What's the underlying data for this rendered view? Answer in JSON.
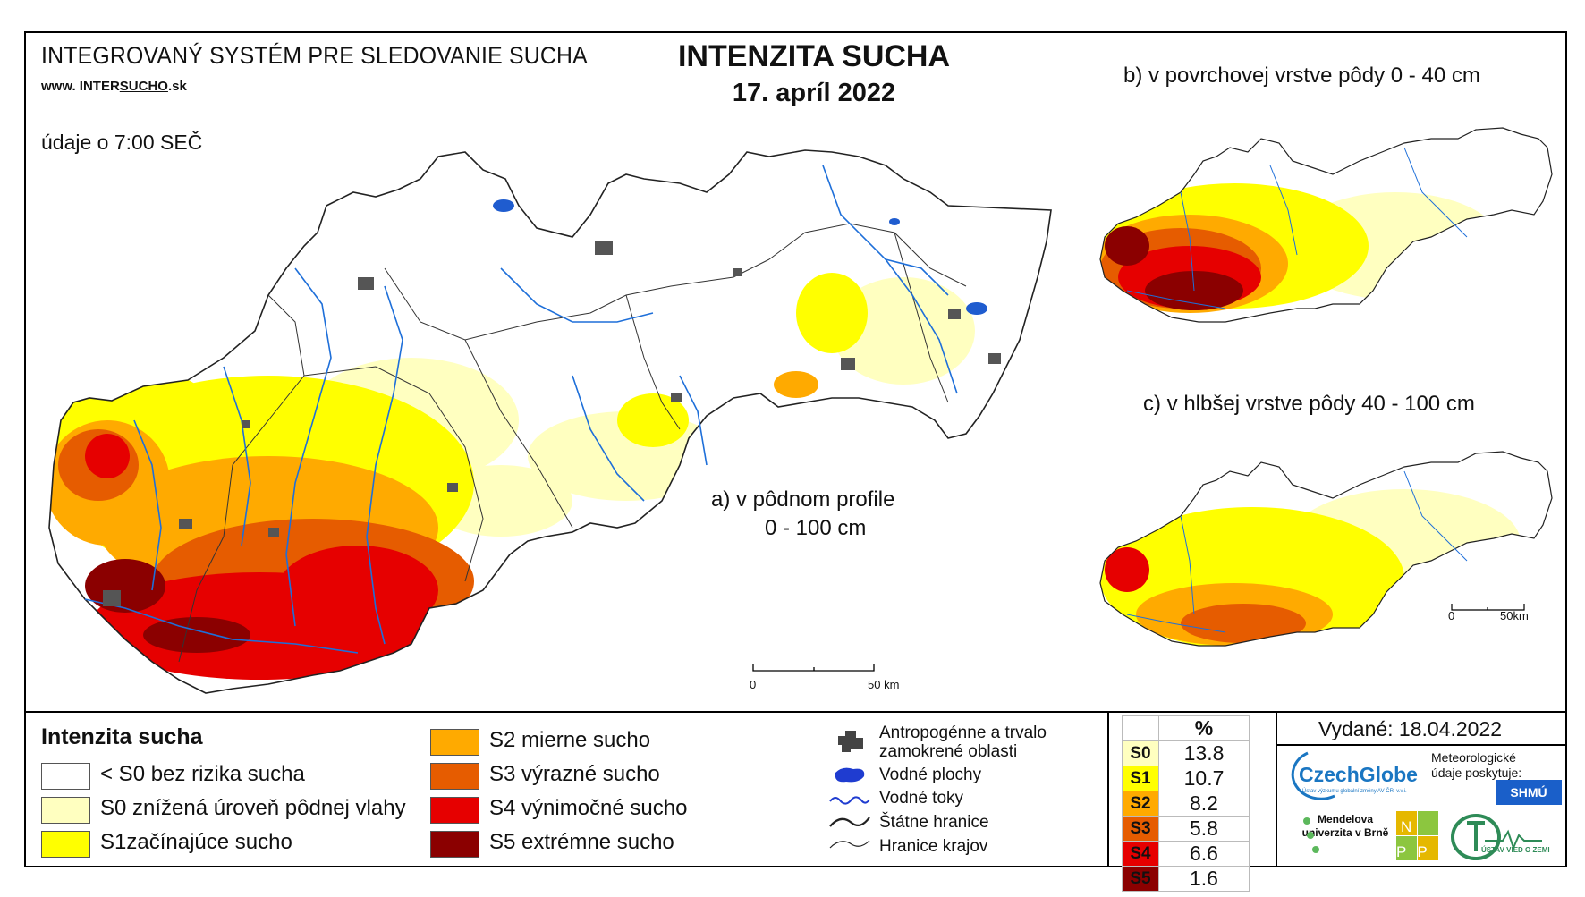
{
  "header": {
    "system_title": "INTEGROVANÝ SYSTÉM PRE SLEDOVANIE SUCHA",
    "site_prefix": "www. INTER",
    "site_underlined": "SUCHO",
    "site_suffix": ".sk",
    "observation_time": "údaje o 7:00 SEČ"
  },
  "title": {
    "main": "INTENZITA SUCHA",
    "date": "17. apríl 2022"
  },
  "maps": {
    "a_label_line1": "a) v pôdnom profile",
    "a_label_line2": "0 - 100 cm",
    "b_label": "b) v povrchovej vrstve pôdy 0 - 40 cm",
    "c_label": "c) v hlbšej vrstve pôdy 40 - 100 cm",
    "scale_main": {
      "start": "0",
      "end": "50 km"
    },
    "scale_small": {
      "start": "0",
      "end": "50km"
    }
  },
  "legend": {
    "title": "Intenzita sucha",
    "classes": [
      {
        "label": "< S0 bez rizika sucha",
        "color": "#ffffff"
      },
      {
        "label": "S0 znížená úroveň pôdnej vlahy",
        "color": "#ffffc0"
      },
      {
        "label": "S1začínajúce sucho",
        "color": "#ffff00"
      },
      {
        "label": "S2 mierne sucho",
        "color": "#ffaa00"
      },
      {
        "label": "S3 výrazné sucho",
        "color": "#e65c00"
      },
      {
        "label": "S4 výnimočné sucho",
        "color": "#e60000"
      },
      {
        "label": "S5 extrémne sucho",
        "color": "#8b0000"
      }
    ],
    "symbols": {
      "urban_line1": "Antropogénne a trvalo",
      "urban_line2": "zamokrené oblasti",
      "water_bodies": "Vodné plochy",
      "rivers": "Vodné toky",
      "state_border": "Štátne hranice",
      "region_border": "Hranice krajov"
    }
  },
  "percent_table": {
    "header": "%",
    "rows": [
      {
        "cls": "S0",
        "value": "13.8",
        "color": "#ffffc0"
      },
      {
        "cls": "S1",
        "value": "10.7",
        "color": "#ffff00"
      },
      {
        "cls": "S2",
        "value": "8.2",
        "color": "#ffaa00"
      },
      {
        "cls": "S3",
        "value": "5.8",
        "color": "#e65c00"
      },
      {
        "cls": "S4",
        "value": "6.6",
        "color": "#e60000"
      },
      {
        "cls": "S5",
        "value": "1.6",
        "color": "#8b0000"
      }
    ]
  },
  "credits": {
    "issued": "Vydané: 18.04.2022",
    "czechglobe": "CzechGlobe",
    "czechglobe_sub": "Ústav výzkumu globální změny AV ČR, v.v.i.",
    "meteo": "Meteorologické údaje poskytuje:",
    "shmu": "SHMÚ",
    "mendel": "Mendelova univerzita v Brně",
    "nppc": "NPPC",
    "ustav": "ÚSTAV VIED O ZEMI"
  }
}
